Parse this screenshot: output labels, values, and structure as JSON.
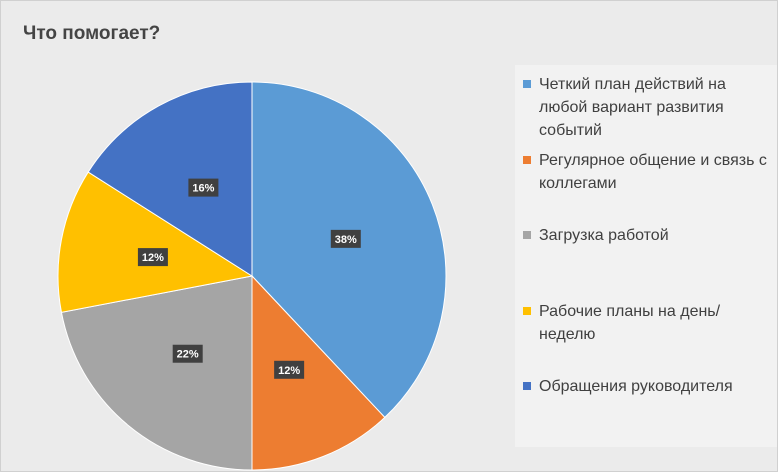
{
  "chart_data": {
    "type": "pie",
    "title": "Что помогает?",
    "categories": [
      "Четкий план действий на любой вариант развития событий",
      "Регулярное общение и связь с коллегами",
      "Загрузка работой",
      "Рабочие планы на день/неделю",
      "Обращения руководителя"
    ],
    "values": [
      38,
      12,
      22,
      12,
      16
    ],
    "data_labels": [
      "38%",
      "12%",
      "22%",
      "12%",
      "16%"
    ],
    "colors": [
      "#5B9BD5",
      "#ED7D31",
      "#A5A5A5",
      "#FFC000",
      "#4472C4"
    ],
    "legend_position": "right"
  }
}
